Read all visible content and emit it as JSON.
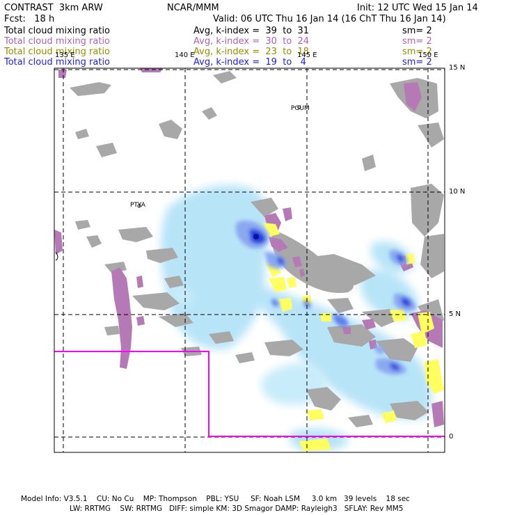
{
  "header": {
    "model": "CONTRAST  3km ARW",
    "center": "NCAR/MMM",
    "init": "Init: 12 UTC Wed 15 Jan 14",
    "fcst": "Fcst:   18 h",
    "valid": "Valid: 06 UTC Thu 16 Jan 14 (16 ChT Thu 16 Jan 14)"
  },
  "fields": [
    {
      "name": "Total cloud mixing ratio",
      "range": "Avg, k-index =  39  to  31",
      "smooth": "sm= 2",
      "color": "#000000"
    },
    {
      "name": "Total cloud mixing ratio",
      "range": "Avg, k-index =  30  to  24",
      "smooth": "sm= 2",
      "color": "#b063b0"
    },
    {
      "name": "Total cloud mixing ratio",
      "range": "Avg, k-index =  23  to  18",
      "smooth": "sm= 2",
      "color": "#8f8f00"
    },
    {
      "name": "Total cloud mixing ratio",
      "range": "Avg, k-index =  19  to   4",
      "smooth": "sm= 2",
      "color": "#2020e0"
    }
  ],
  "map": {
    "lon_labels": [
      "135 E",
      "140 E",
      "145 E",
      "150 E"
    ],
    "lat_labels": [
      "15 N",
      "10 N",
      "5 N",
      "0"
    ],
    "stations": [
      "PGUM",
      "PTYA"
    ],
    "colors": {
      "high": "#a8a8a8",
      "mid": "#b57ab5",
      "low": "#ffff60",
      "lowest": "#b4e4f8",
      "boundary": "#ff00ff"
    }
  },
  "footer": {
    "line1": "Model Info: V3.5.1    CU: No Cu    MP: Thompson    PBL: YSU     SF: Noah LSM     3.0 km   39 levels    18 sec",
    "line2": "LW: RRTMG    SW: RRTMG   DIFF: simple KM: 3D Smagor DAMP: Rayleigh3   SFLAY: Rev MM5"
  }
}
